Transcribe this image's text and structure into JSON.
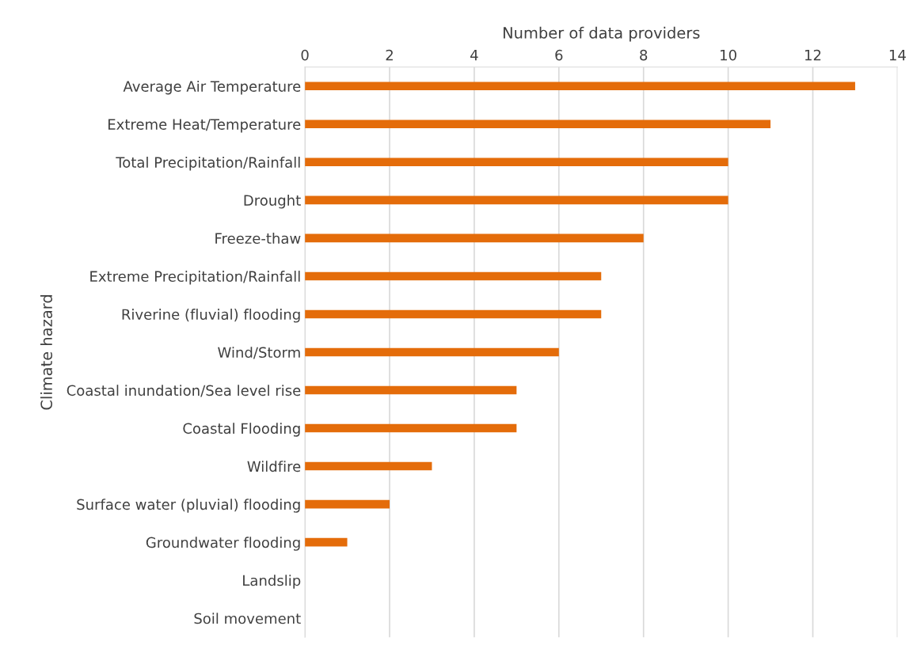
{
  "chart_data": {
    "type": "bar",
    "orientation": "horizontal",
    "xlabel": "Number of data providers",
    "ylabel": "Climate hazard",
    "categories": [
      "Average Air Temperature",
      "Extreme Heat/Temperature",
      "Total Precipitation/Rainfall",
      "Drought",
      "Freeze-thaw",
      "Extreme Precipitation/Rainfall",
      "Riverine (fluvial) flooding",
      "Wind/Storm",
      "Coastal inundation/Sea level rise",
      "Coastal Flooding",
      "Wildfire",
      "Surface water (pluvial) flooding",
      "Groundwater flooding",
      "Landslip",
      "Soil movement"
    ],
    "values": [
      13,
      11,
      10,
      10,
      8,
      7,
      7,
      6,
      5,
      5,
      3,
      2,
      1,
      0,
      0
    ],
    "color": "#e46c0a",
    "xlim": [
      0,
      14
    ],
    "xticks": [
      0,
      2,
      4,
      6,
      8,
      10,
      12,
      14
    ],
    "grid": "x",
    "legend": false
  }
}
